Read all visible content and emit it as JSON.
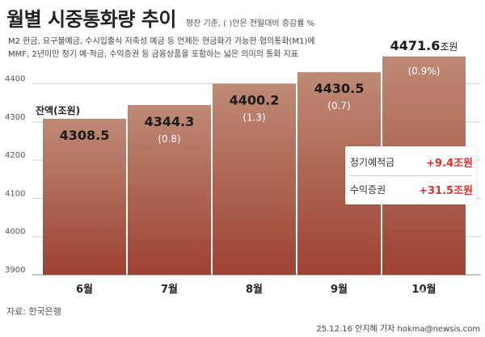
{
  "header": {
    "title": "월별 시중통화량 추이",
    "subtitle": "평잔 기준, ( )안은 전월대비 증감률 %",
    "description_line1": "M2 현금, 요구불예금, 수시입출식 저축성 예금 등 언제든 현금화가 가능한 협의통화(M1)에",
    "description_line2": "MMF, 2년미만 정기 예·적금, 수익증권 등 금융상품을 포함하는 넓은 의미의 통화 지표"
  },
  "chart_data": {
    "type": "bar",
    "title": "월별 시중통화량 추이",
    "ylabel": "잔액(조원)",
    "xlabel": "",
    "ylim": [
      3900,
      4450
    ],
    "yticks": [
      3900,
      4000,
      4100,
      4200,
      4300,
      4400
    ],
    "categories": [
      "6월",
      "7월",
      "8월",
      "9월",
      "10월"
    ],
    "values": [
      4308.5,
      4344.3,
      4400.2,
      4430.5,
      4471.6
    ],
    "value_labels": [
      "4308.5",
      "4344.3",
      "4400.2",
      "4430.5",
      "4471.6"
    ],
    "last_value_unit": "조원",
    "change_labels": [
      "",
      "(0.8)",
      "(1.3)",
      "(0.7)",
      "(0.9%)"
    ],
    "grid": true,
    "legend": "none"
  },
  "callout": {
    "row1_label": "정기예적금",
    "row1_value": "+9.4조원",
    "row2_label": "수익증권",
    "row2_value": "+31.5조원"
  },
  "footer": {
    "source": "자료: 한국은행",
    "credit": "25.12.16 안지혜 기자 hokma@newsis.com",
    "watermark": "뉴시스"
  },
  "colors": {
    "bar_top": "#be8a75",
    "bar_bottom": "#9e4232",
    "grid": "#d0d0d0",
    "accent_red": "#e0302b"
  }
}
